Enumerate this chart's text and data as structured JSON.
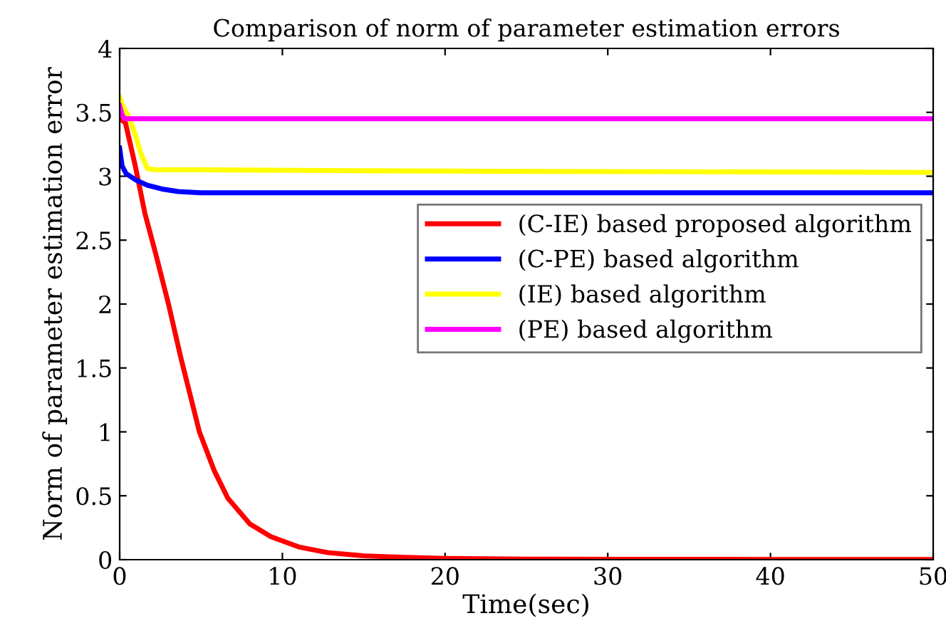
{
  "chart_data": {
    "type": "line",
    "title": "Comparison of norm of parameter estimation errors",
    "xlabel": "Time(sec)",
    "ylabel": "Norm of parameter estimation error",
    "xlim": [
      0,
      50
    ],
    "ylim": [
      0,
      4
    ],
    "xticks": [
      0,
      10,
      20,
      30,
      40,
      50
    ],
    "yticks": [
      0,
      0.5,
      1,
      1.5,
      2,
      2.5,
      3,
      3.5,
      4
    ],
    "grid": false,
    "legend": "center right",
    "line_style": "solid",
    "marker": "none",
    "series": [
      {
        "name": "(C-IE) based proposed algorithm",
        "color": "#ff0000",
        "x": [
          0,
          0.35,
          0.96,
          1.55,
          2.2,
          3,
          3.74,
          4.9,
          5.8,
          6.65,
          8,
          9.3,
          11,
          12.8,
          15,
          17.2,
          20,
          25,
          30,
          40,
          50
        ],
        "values": [
          3.45,
          3.42,
          3.08,
          2.71,
          2.4,
          2.0,
          1.59,
          1.0,
          0.7,
          0.48,
          0.28,
          0.18,
          0.1,
          0.055,
          0.03,
          0.02,
          0.01,
          0.005,
          0.003,
          0.002,
          0.002
        ]
      },
      {
        "name": "(C-PE) based algorithm",
        "color": "#0000ff",
        "x": [
          0,
          0.15,
          0.4,
          1,
          1.7,
          2.6,
          3.6,
          5,
          7,
          10,
          20,
          50
        ],
        "values": [
          3.22,
          3.08,
          3.02,
          2.97,
          2.93,
          2.9,
          2.88,
          2.87,
          2.87,
          2.87,
          2.87,
          2.87
        ]
      },
      {
        "name": "(IE) based algorithm",
        "color": "#ffff00",
        "x": [
          0,
          0.2,
          0.5,
          0.9,
          1.3,
          1.7,
          2.2,
          5,
          20,
          50
        ],
        "values": [
          3.62,
          3.55,
          3.48,
          3.35,
          3.18,
          3.06,
          3.05,
          3.05,
          3.04,
          3.03
        ]
      },
      {
        "name": "(PE) based algorithm",
        "color": "#ff00ff",
        "x": [
          0,
          0.15,
          0.3,
          1,
          50
        ],
        "values": [
          3.55,
          3.48,
          3.45,
          3.45,
          3.45
        ]
      }
    ]
  }
}
